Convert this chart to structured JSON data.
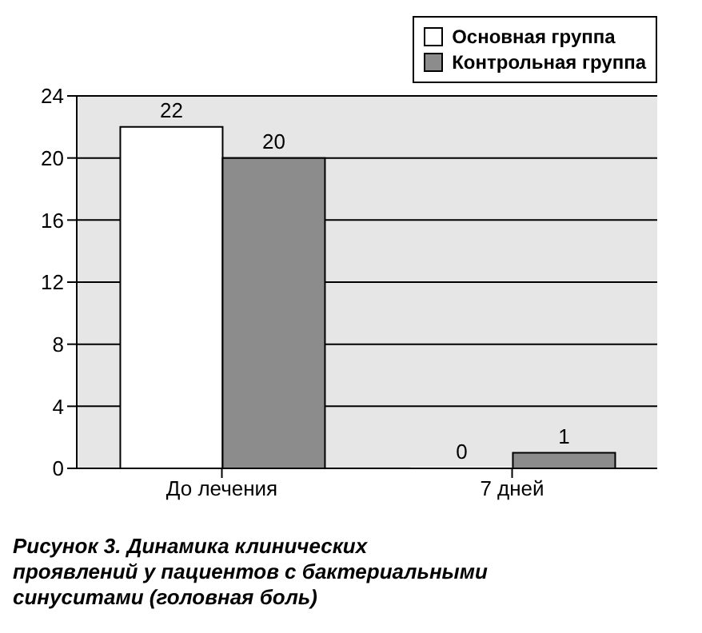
{
  "chart_data": {
    "type": "bar",
    "categories": [
      "До лечения",
      "7 дней"
    ],
    "series": [
      {
        "name": "Основная группа",
        "color": "#ffffff",
        "values": [
          22,
          0
        ]
      },
      {
        "name": "Контрольная группа",
        "color": "#8c8c8c",
        "values": [
          20,
          1
        ]
      }
    ],
    "ylim": [
      0,
      24
    ],
    "yticks": [
      0,
      4,
      8,
      12,
      16,
      20,
      24
    ],
    "grid": "y",
    "legend": "top right",
    "data_labels": true,
    "annotations": [
      "Рисунок 3. Динамика клинических проявлений у пациентов с бактериальными синуситами (головная боль)"
    ]
  }
}
